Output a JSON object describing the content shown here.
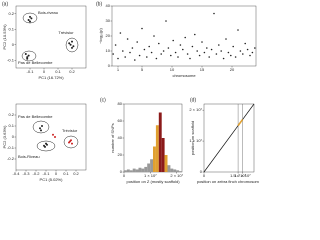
{
  "chart_data": [
    {
      "type": "scatter",
      "label": "(a)",
      "xlabel": "PC1 (16.72%)",
      "ylabel": "PC2 (10.53%)",
      "xlim": [
        -0.2,
        0.3
      ],
      "ylim": [
        -0.15,
        0.25
      ],
      "xticks": [
        -0.1,
        0,
        0.1,
        0.2
      ],
      "yticks": [
        -0.1,
        0,
        0.1,
        0.2
      ],
      "annotations": [
        "Bois-riveau",
        "Trévisiur",
        "Pas de Bellecombe"
      ],
      "series": [
        {
          "color": "#222222",
          "x": [
            -0.11,
            -0.1,
            -0.09,
            -0.1,
            0.19,
            0.2,
            0.21,
            0.2,
            0.18,
            -0.13,
            -0.12,
            -0.11,
            -0.12
          ],
          "values": [
            0.16,
            0.18,
            0.17,
            0.15,
            0.0,
            0.02,
            -0.01,
            -0.02,
            0.01,
            -0.06,
            -0.08,
            -0.07,
            -0.09
          ]
        }
      ]
    },
    {
      "type": "scatter",
      "xlabel": "PC1 (5.02%)",
      "ylabel": "PC2 (3.63%)",
      "xlim": [
        -0.4,
        0.3
      ],
      "ylim": [
        -0.3,
        0.3
      ],
      "xticks": [
        -0.4,
        -0.3,
        -0.2,
        -0.1,
        0,
        0.1,
        0.2
      ],
      "yticks": [
        -0.2,
        -0.1,
        0,
        0.1,
        0.2
      ],
      "annotations": [
        "Pas de Bellecombe",
        "Bois-Riveau",
        "Trévisiur"
      ],
      "series": [
        {
          "color": "#222222",
          "x": [
            -0.16,
            -0.14,
            -0.15,
            -0.09,
            -0.11,
            -0.1,
            -0.12
          ],
          "values": [
            0.08,
            0.1,
            0.06,
            -0.07,
            -0.09,
            -0.06,
            -0.08
          ]
        },
        {
          "color": "#cc2222",
          "x": [
            0.14,
            0.16,
            0.15,
            0.13,
            -0.03,
            -0.01
          ],
          "values": [
            -0.04,
            -0.06,
            -0.03,
            -0.05,
            0.02,
            0.0
          ]
        }
      ]
    },
    {
      "type": "scatter",
      "label": "(b)",
      "xlabel": "chromosome",
      "ylabel": "−log₁₀(p)",
      "xlim": [
        0,
        24
      ],
      "ylim": [
        0,
        40
      ],
      "xticks": [
        1,
        5,
        10,
        15,
        20
      ],
      "yticks": [
        0,
        10,
        20,
        30,
        40
      ],
      "series": [
        {
          "color": "#222222",
          "x": [
            0.2,
            0.6,
            1.0,
            1.4,
            1.8,
            2.2,
            2.6,
            3.0,
            3.4,
            3.8,
            4.2,
            4.6,
            5.0,
            5.4,
            5.8,
            6.2,
            6.6,
            7.0,
            7.4,
            7.8,
            8.2,
            8.6,
            9.0,
            9.4,
            9.8,
            10.2,
            10.6,
            11.0,
            11.4,
            11.8,
            12.2,
            12.6,
            13.0,
            13.4,
            13.8,
            14.2,
            14.6,
            15.0,
            15.4,
            15.8,
            16.2,
            16.6,
            17.0,
            17.4,
            17.8,
            18.2,
            18.6,
            19.0,
            19.4,
            19.8,
            20.2,
            20.6,
            21.0,
            21.4,
            21.8,
            22.2,
            22.6,
            23.0,
            23.4,
            23.8
          ],
          "values": [
            8,
            14,
            5,
            22,
            10,
            6,
            18,
            9,
            12,
            4,
            16,
            7,
            25,
            11,
            6,
            13,
            9,
            20,
            5,
            15,
            8,
            10,
            30,
            12,
            7,
            17,
            9,
            6,
            14,
            11,
            19,
            8,
            5,
            13,
            21,
            10,
            7,
            16,
            9,
            12,
            6,
            11,
            35,
            8,
            14,
            10,
            5,
            18,
            9,
            7,
            13,
            6,
            24,
            10,
            8,
            15,
            11,
            7,
            9,
            12
          ]
        }
      ]
    },
    {
      "type": "histogram",
      "label": "(c)",
      "xlabel": "position on Z (mostly scaffold)",
      "ylabel": "number of SNPs",
      "xlim": [
        0,
        22000000
      ],
      "ylim": [
        0,
        80
      ],
      "xticks": [
        {
          "value": 0,
          "label": "0"
        },
        {
          "value": 10000000,
          "label": "1 × 10⁷"
        },
        {
          "value": 20000000,
          "label": "2 × 10⁷"
        }
      ],
      "yticks": [
        0,
        20,
        40,
        60,
        80
      ],
      "bins": [
        0,
        1100000,
        2200000,
        3300000,
        4400000,
        5500000,
        6600000,
        7700000,
        8800000,
        9900000,
        11000000,
        12100000,
        13200000,
        14300000,
        15400000,
        16500000,
        17600000,
        18700000,
        19800000,
        20900000,
        22000000
      ],
      "counts": [
        2,
        3,
        2,
        4,
        3,
        5,
        4,
        6,
        10,
        15,
        30,
        55,
        70,
        40,
        20,
        8,
        4,
        3,
        2,
        1
      ],
      "colors": [
        "#999999",
        "#999999",
        "#999999",
        "#999999",
        "#999999",
        "#999999",
        "#999999",
        "#999999",
        "#999999",
        "#999999",
        "#e0a030",
        "#e0a030",
        "#8b1a1a",
        "#8b1a1a",
        "#e0a030",
        "#999999",
        "#999999",
        "#999999",
        "#999999",
        "#999999"
      ]
    },
    {
      "type": "line",
      "label": "(d)",
      "xlabel": "position on zebra finch chromosome",
      "ylabel": "position on scaffold",
      "xlim": [
        0,
        22000000
      ],
      "ylim": [
        0,
        22000000
      ],
      "xticks": [
        {
          "value": 0,
          "label": "0"
        },
        {
          "value": 15000000,
          "label": "1.5 × 10⁷"
        },
        {
          "value": 17000000,
          "label": "1.7 × 10⁷"
        }
      ],
      "yticks": [
        {
          "value": 0,
          "label": "0"
        },
        {
          "value": 10000000,
          "label": "1 × 10⁷"
        },
        {
          "value": 20000000,
          "label": "2 × 10⁷"
        }
      ],
      "vlines": [
        15000000,
        17000000
      ],
      "series": [
        {
          "color": "#111111",
          "x": [
            0,
            22000000
          ],
          "values": [
            0,
            22000000
          ]
        },
        {
          "color": "#e0a030",
          "x": [
            15000000,
            17000000
          ],
          "values": [
            15000000,
            17000000
          ]
        }
      ]
    }
  ]
}
